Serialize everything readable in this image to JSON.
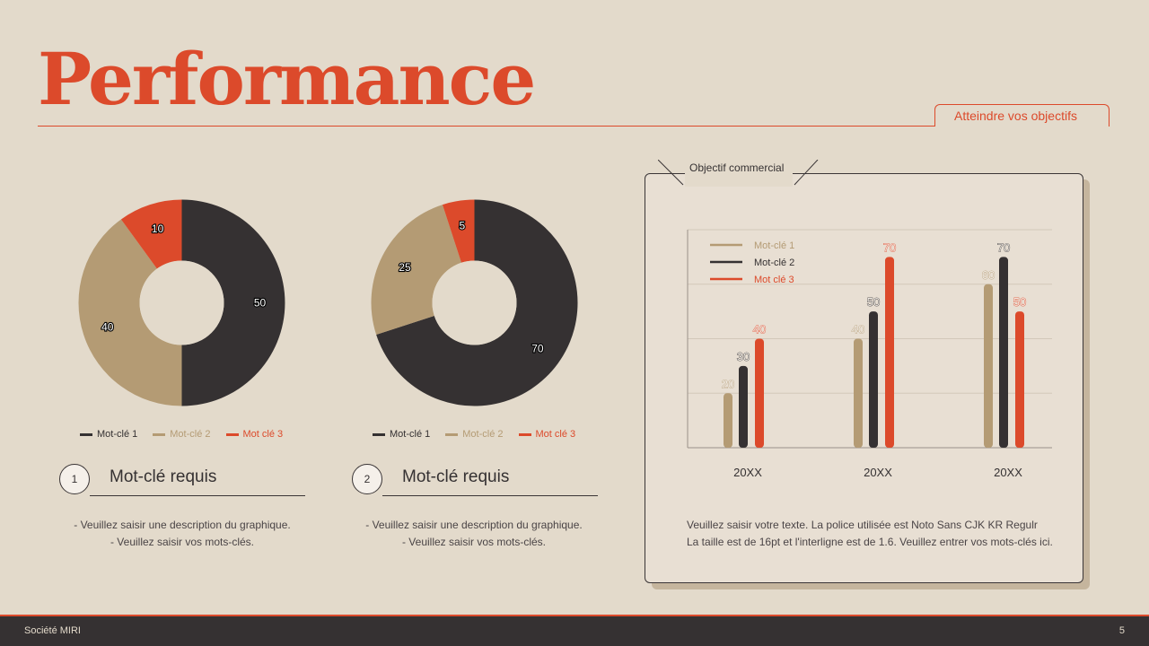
{
  "header": {
    "title": "Performance",
    "subtitle": "Atteindre vos objectifs"
  },
  "colors": {
    "accent": "#dc4a2b",
    "dark": "#353132",
    "tan": "#b49b74",
    "background": "#e3dacb"
  },
  "left_panels": [
    {
      "number": "1",
      "heading": "Mot-clé requis",
      "description": [
        "- Veuillez saisir une description du graphique.",
        "- Veuillez saisir vos mots-clés."
      ],
      "legend": [
        "Mot-clé 1",
        "Mot-clé 2",
        "Mot clé 3"
      ]
    },
    {
      "number": "2",
      "heading": "Mot-clé requis",
      "description": [
        "- Veuillez saisir une description du graphique.",
        "- Veuillez saisir vos mots-clés."
      ],
      "legend": [
        "Mot-clé 1",
        "Mot-clé 2",
        "Mot clé 3"
      ]
    }
  ],
  "card": {
    "label": "Objectif commercial",
    "text": [
      "Veuillez saisir votre texte. La police utilisée est Noto Sans CJK KR Regulr",
      "La taille est de 16pt et l'interligne est de 1.6. Veuillez entrer vos mots-clés ici."
    ]
  },
  "footer": {
    "company": "Société MIRI",
    "page": "5"
  },
  "chart_data": [
    {
      "type": "pie",
      "donut": true,
      "categories": [
        "Mot-clé 1",
        "Mot-clé 2",
        "Mot clé 3"
      ],
      "values": [
        50,
        40,
        10
      ],
      "colors": [
        "#353132",
        "#b49b74",
        "#dc4a2b"
      ]
    },
    {
      "type": "pie",
      "donut": true,
      "categories": [
        "Mot-clé 1",
        "Mot-clé 2",
        "Mot clé 3"
      ],
      "values": [
        70,
        25,
        5
      ],
      "colors": [
        "#353132",
        "#b49b74",
        "#dc4a2b"
      ]
    },
    {
      "type": "bar",
      "categories": [
        "20XX",
        "20XX",
        "20XX"
      ],
      "series": [
        {
          "name": "Mot-clé 1",
          "values": [
            20,
            40,
            60
          ],
          "color": "#b49b74"
        },
        {
          "name": "Mot-clé 2",
          "values": [
            30,
            50,
            70
          ],
          "color": "#353132"
        },
        {
          "name": "Mot clé 3",
          "values": [
            40,
            70,
            50
          ],
          "color": "#dc4a2b"
        }
      ],
      "legend_labels": [
        "Mot-clé 1",
        "Mot-clé 2",
        "Mot clé 3"
      ],
      "ylim": [
        0,
        80
      ],
      "grid": true,
      "legend_position": "top-left"
    }
  ]
}
